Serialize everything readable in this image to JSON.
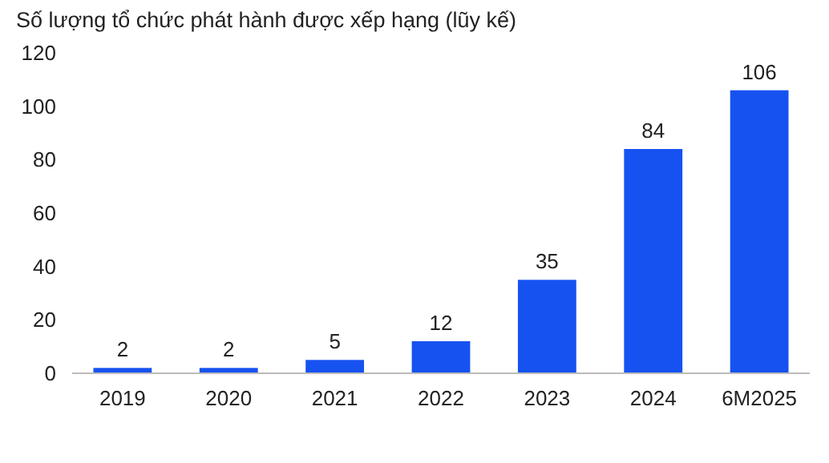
{
  "chart_data": {
    "type": "bar",
    "title": "Số lượng tổ chức phát hành được xếp hạng (lũy kế)",
    "categories": [
      "2019",
      "2020",
      "2021",
      "2022",
      "2023",
      "2024",
      "6M2025"
    ],
    "values": [
      2,
      2,
      5,
      12,
      35,
      84,
      106
    ],
    "color": "#1652f0",
    "ylim": [
      0,
      120
    ],
    "yticks": [
      0,
      20,
      40,
      60,
      80,
      100,
      120
    ],
    "grid": false,
    "data_labels": true
  }
}
